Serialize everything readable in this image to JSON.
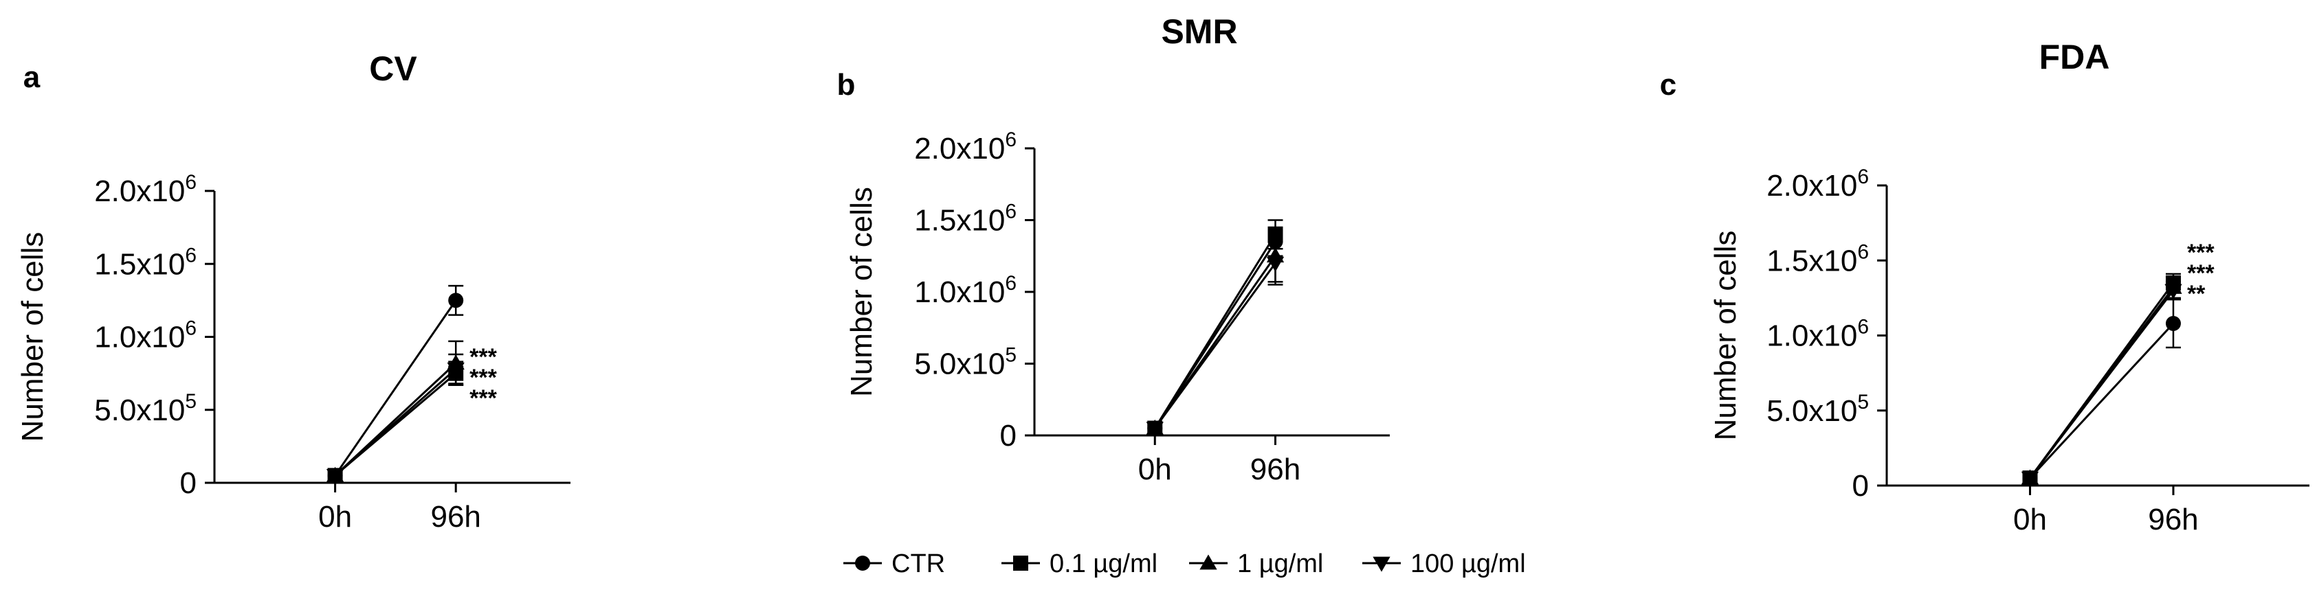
{
  "chart_data": [
    {
      "type": "line",
      "panel": "a",
      "title": "CV",
      "xlabel": "",
      "ylabel": "Number of cells",
      "categories": [
        "0h",
        "96h"
      ],
      "ylim": [
        0,
        2000000
      ],
      "yticks": [
        {
          "value": 0,
          "mantissa": "0",
          "exponent": ""
        },
        {
          "value": 500000,
          "mantissa": "5.0x10",
          "exponent": "5"
        },
        {
          "value": 1000000,
          "mantissa": "1.0x10",
          "exponent": "6"
        },
        {
          "value": 1500000,
          "mantissa": "1.5x10",
          "exponent": "6"
        },
        {
          "value": 2000000,
          "mantissa": "2.0x10",
          "exponent": "6"
        }
      ],
      "series": [
        {
          "name": "CTR",
          "marker": "circle",
          "values": [
            50000,
            1250000
          ],
          "errors": [
            0,
            100000
          ]
        },
        {
          "name": "0.1 µg/ml",
          "marker": "square",
          "values": [
            50000,
            750000
          ],
          "errors": [
            0,
            80000
          ]
        },
        {
          "name": "1 µg/ml",
          "marker": "triangle-up",
          "values": [
            50000,
            820000
          ],
          "errors": [
            0,
            150000
          ]
        },
        {
          "name": "100 µg/ml",
          "marker": "triangle-down",
          "values": [
            50000,
            780000
          ],
          "errors": [
            0,
            100000
          ]
        }
      ],
      "significance": [
        "***",
        "***",
        "***"
      ]
    },
    {
      "type": "line",
      "panel": "b",
      "title": "SMR",
      "xlabel": "",
      "ylabel": "Number of cells",
      "categories": [
        "0h",
        "96h"
      ],
      "ylim": [
        0,
        2000000
      ],
      "yticks": [
        {
          "value": 0,
          "mantissa": "0",
          "exponent": ""
        },
        {
          "value": 500000,
          "mantissa": "5.0x10",
          "exponent": "5"
        },
        {
          "value": 1000000,
          "mantissa": "1.0x10",
          "exponent": "6"
        },
        {
          "value": 1500000,
          "mantissa": "1.5x10",
          "exponent": "6"
        },
        {
          "value": 2000000,
          "mantissa": "2.0x10",
          "exponent": "6"
        }
      ],
      "series": [
        {
          "name": "CTR",
          "marker": "circle",
          "values": [
            50000,
            1350000
          ],
          "errors": [
            0,
            100000
          ]
        },
        {
          "name": "0.1 µg/ml",
          "marker": "square",
          "values": [
            50000,
            1400000
          ],
          "errors": [
            0,
            100000
          ]
        },
        {
          "name": "1 µg/ml",
          "marker": "triangle-up",
          "values": [
            50000,
            1250000
          ],
          "errors": [
            0,
            180000
          ]
        },
        {
          "name": "100 µg/ml",
          "marker": "triangle-down",
          "values": [
            50000,
            1200000
          ],
          "errors": [
            0,
            150000
          ]
        }
      ],
      "significance": []
    },
    {
      "type": "line",
      "panel": "c",
      "title": "FDA",
      "xlabel": "",
      "ylabel": "Number of cells",
      "categories": [
        "0h",
        "96h"
      ],
      "ylim": [
        0,
        2000000
      ],
      "yticks": [
        {
          "value": 0,
          "mantissa": "0",
          "exponent": ""
        },
        {
          "value": 500000,
          "mantissa": "5.0x10",
          "exponent": "5"
        },
        {
          "value": 1000000,
          "mantissa": "1.0x10",
          "exponent": "6"
        },
        {
          "value": 1500000,
          "mantissa": "1.5x10",
          "exponent": "6"
        },
        {
          "value": 2000000,
          "mantissa": "2.0x10",
          "exponent": "6"
        }
      ],
      "series": [
        {
          "name": "CTR",
          "marker": "circle",
          "values": [
            50000,
            1080000
          ],
          "errors": [
            0,
            160000
          ]
        },
        {
          "name": "0.1 µg/ml",
          "marker": "square",
          "values": [
            50000,
            1350000
          ],
          "errors": [
            0,
            60000
          ]
        },
        {
          "name": "1 µg/ml",
          "marker": "triangle-up",
          "values": [
            50000,
            1320000
          ],
          "errors": [
            0,
            70000
          ]
        },
        {
          "name": "100 µg/ml",
          "marker": "triangle-down",
          "values": [
            50000,
            1300000
          ],
          "errors": [
            0,
            60000
          ]
        }
      ],
      "significance": [
        "***",
        "***",
        "**"
      ]
    }
  ],
  "legend": {
    "placement": "bottom-center",
    "items": [
      {
        "label": "CTR",
        "marker": "circle"
      },
      {
        "label": "0.1 µg/ml",
        "marker": "square"
      },
      {
        "label": "1 µg/ml",
        "marker": "triangle-up"
      },
      {
        "label": "100 µg/ml",
        "marker": "triangle-down"
      }
    ]
  }
}
